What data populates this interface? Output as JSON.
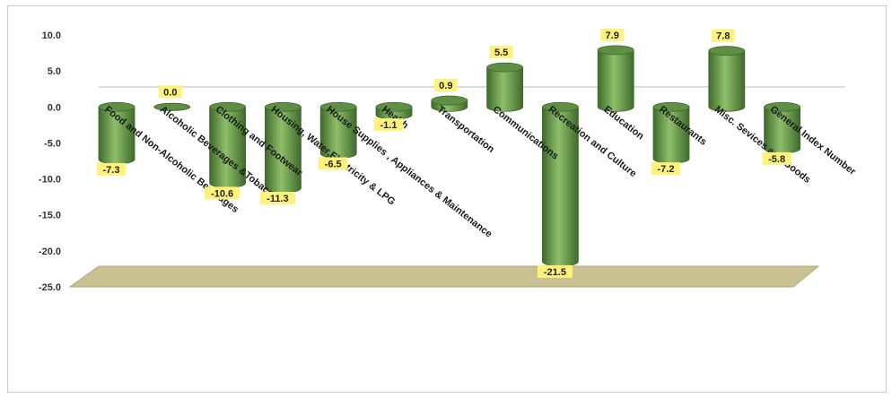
{
  "colors": {
    "bar": "#5f8f45",
    "bar_light": "#8fbf6a",
    "bar_dark": "#3f6a2c",
    "floor": "#c9c192",
    "label_bg": "#fff27a"
  },
  "chart_data": {
    "type": "bar",
    "style": "3d-cylinder",
    "ylim": [
      -25,
      10
    ],
    "yticks": [
      "10.0",
      "5.0",
      "0.0",
      "-5.0",
      "-10.0",
      "-15.0",
      "-20.0",
      "-25.0"
    ],
    "grid": false,
    "categories": [
      "Food and Non-Alcoholic Beverages",
      "Alcoholic Beverages &Tobacco",
      "Clothing and Footwear",
      "Housing, Water,Electricity & LPG",
      "House Supplies , Appliances & Maintenance",
      "Health",
      "Transportation",
      "Communications",
      "Recreation and Culture",
      "Education",
      "Restaurants",
      "Misc. Sevices and Goods",
      "General Index Number"
    ],
    "values": [
      -7.3,
      0.0,
      -10.6,
      -11.3,
      -6.5,
      -1.1,
      0.9,
      5.5,
      -21.5,
      7.9,
      -7.2,
      7.8,
      -5.8
    ],
    "data_labels": [
      "-7.3",
      "0.0",
      "-10.6",
      "-11.3",
      "-6.5",
      "-1.1",
      "0.9",
      "5.5",
      "-21.5",
      "7.9",
      "-7.2",
      "7.8",
      "-5.8"
    ]
  }
}
